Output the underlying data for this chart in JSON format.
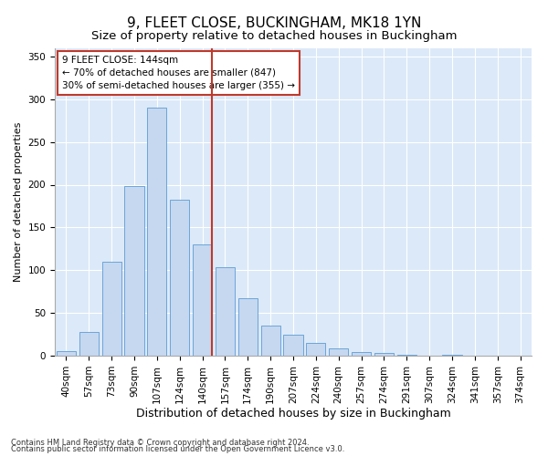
{
  "title1": "9, FLEET CLOSE, BUCKINGHAM, MK18 1YN",
  "title2": "Size of property relative to detached houses in Buckingham",
  "xlabel": "Distribution of detached houses by size in Buckingham",
  "ylabel": "Number of detached properties",
  "footnote1": "Contains HM Land Registry data © Crown copyright and database right 2024.",
  "footnote2": "Contains public sector information licensed under the Open Government Licence v3.0.",
  "bar_labels": [
    "40sqm",
    "57sqm",
    "73sqm",
    "90sqm",
    "107sqm",
    "124sqm",
    "140sqm",
    "157sqm",
    "174sqm",
    "190sqm",
    "207sqm",
    "224sqm",
    "240sqm",
    "257sqm",
    "274sqm",
    "291sqm",
    "307sqm",
    "324sqm",
    "341sqm",
    "357sqm",
    "374sqm"
  ],
  "bar_values": [
    5,
    28,
    110,
    198,
    290,
    182,
    130,
    103,
    67,
    35,
    25,
    15,
    9,
    4,
    3,
    1,
    0,
    1,
    0,
    0,
    0
  ],
  "bar_color": "#c5d8f0",
  "bar_edgecolor": "#5b9bd5",
  "vline_x_index": 6,
  "vline_color": "#c0392b",
  "annotation_line1": "9 FLEET CLOSE: 144sqm",
  "annotation_line2": "← 70% of detached houses are smaller (847)",
  "annotation_line3": "30% of semi-detached houses are larger (355) →",
  "annotation_box_edgecolor": "#c0392b",
  "annotation_box_facecolor": "white",
  "ylim": [
    0,
    360
  ],
  "yticks": [
    0,
    50,
    100,
    150,
    200,
    250,
    300,
    350
  ],
  "plot_bg_color": "#dce9f8",
  "title1_fontsize": 11,
  "title2_fontsize": 9.5,
  "xlabel_fontsize": 9,
  "ylabel_fontsize": 8,
  "tick_fontsize": 7.5,
  "annot_fontsize": 7.5
}
